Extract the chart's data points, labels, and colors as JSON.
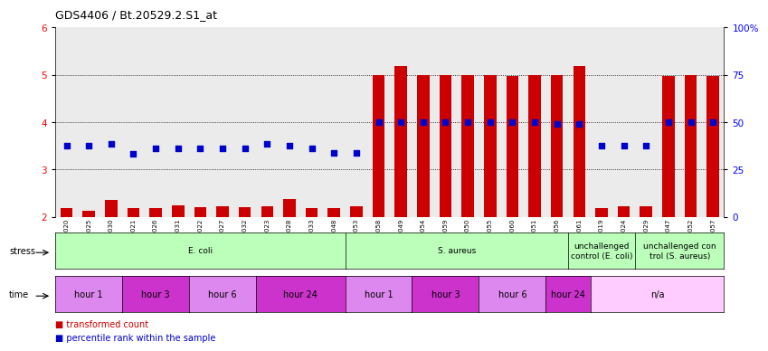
{
  "title": "GDS4406 / Bt.20529.2.S1_at",
  "samples": [
    "GSM624020",
    "GSM624025",
    "GSM624030",
    "GSM624021",
    "GSM624026",
    "GSM624031",
    "GSM624022",
    "GSM624027",
    "GSM624032",
    "GSM624023",
    "GSM624028",
    "GSM624033",
    "GSM624048",
    "GSM624053",
    "GSM624058",
    "GSM624049",
    "GSM624054",
    "GSM624059",
    "GSM624050",
    "GSM624055",
    "GSM624060",
    "GSM624051",
    "GSM624056",
    "GSM624061",
    "GSM624019",
    "GSM624024",
    "GSM624029",
    "GSM624047",
    "GSM624052",
    "GSM624057"
  ],
  "red_vals": [
    2.19,
    2.12,
    2.35,
    2.18,
    2.19,
    2.24,
    2.21,
    2.22,
    2.21,
    2.22,
    2.38,
    2.18,
    2.19,
    2.22,
    5.0,
    5.18,
    5.0,
    5.0,
    5.0,
    5.0,
    4.98,
    5.0,
    5.0,
    5.18,
    2.19,
    2.23,
    2.22,
    4.98,
    5.0,
    4.98
  ],
  "blue_vals": [
    3.5,
    3.5,
    3.55,
    3.33,
    3.45,
    3.45,
    3.45,
    3.45,
    3.45,
    3.55,
    3.5,
    3.45,
    3.35,
    3.35,
    4.0,
    4.0,
    4.0,
    4.0,
    4.0,
    4.0,
    4.0,
    4.0,
    3.97,
    3.97,
    3.5,
    3.5,
    3.5,
    4.0,
    4.0,
    4.0
  ],
  "ylim_left": [
    2.0,
    6.0
  ],
  "yticks_left": [
    2,
    3,
    4,
    5,
    6
  ],
  "yticks_right": [
    0,
    25,
    50,
    75,
    100
  ],
  "bar_color": "#cc0000",
  "dot_color": "#0000cc",
  "stress_groups": [
    {
      "label": "E. coli",
      "start": 0,
      "end": 13,
      "color": "#bbffbb"
    },
    {
      "label": "S. aureus",
      "start": 13,
      "end": 23,
      "color": "#bbffbb"
    },
    {
      "label": "unchallenged\ncontrol (E. coli)",
      "start": 23,
      "end": 26,
      "color": "#bbffbb"
    },
    {
      "label": "unchallenged con\ntrol (S. aureus)",
      "start": 26,
      "end": 30,
      "color": "#bbffbb"
    }
  ],
  "time_groups_ecoli": [
    {
      "label": "hour 1",
      "start": 0,
      "end": 3,
      "color": "#dd88ee"
    },
    {
      "label": "hour 3",
      "start": 3,
      "end": 6,
      "color": "#cc33cc"
    },
    {
      "label": "hour 6",
      "start": 6,
      "end": 9,
      "color": "#dd88ee"
    },
    {
      "label": "hour 24",
      "start": 9,
      "end": 13,
      "color": "#cc33cc"
    }
  ],
  "time_groups_saur": [
    {
      "label": "hour 1",
      "start": 13,
      "end": 16,
      "color": "#dd88ee"
    },
    {
      "label": "hour 3",
      "start": 16,
      "end": 19,
      "color": "#cc33cc"
    },
    {
      "label": "hour 6",
      "start": 19,
      "end": 22,
      "color": "#dd88ee"
    },
    {
      "label": "hour 24",
      "start": 22,
      "end": 24,
      "color": "#cc33cc"
    }
  ],
  "time_groups_na": [
    {
      "label": "n/a",
      "start": 24,
      "end": 30,
      "color": "#ffccff"
    }
  ]
}
